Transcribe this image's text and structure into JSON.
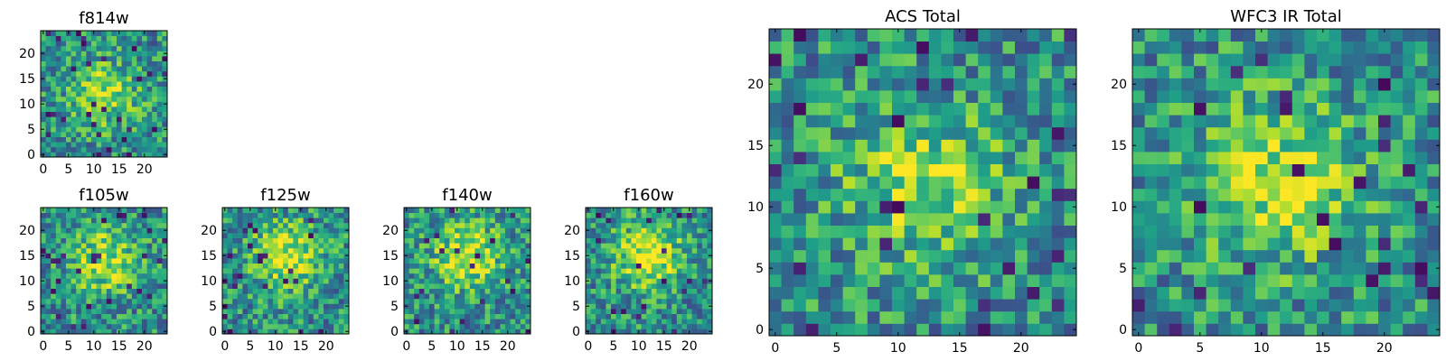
{
  "chart_data": [
    {
      "type": "heatmap",
      "title": "f814w",
      "x_ticks": [
        "0",
        "5",
        "10",
        "15",
        "20"
      ],
      "y_ticks": [
        "0",
        "5",
        "10",
        "15",
        "20"
      ],
      "xlim": [
        -0.5,
        24.5
      ],
      "ylim": [
        -0.5,
        24.5
      ],
      "grid_size": 25,
      "colormap": "viridis",
      "pattern_seed": 11,
      "peak_center": [
        12,
        12
      ],
      "peak_strength": 0.35
    },
    {
      "type": "heatmap",
      "title": "f105w",
      "x_ticks": [
        "0",
        "5",
        "10",
        "15",
        "20"
      ],
      "y_ticks": [
        "0",
        "5",
        "10",
        "15",
        "20"
      ],
      "xlim": [
        -0.5,
        24.5
      ],
      "ylim": [
        -0.5,
        24.5
      ],
      "grid_size": 25,
      "colormap": "viridis",
      "pattern_seed": 23,
      "peak_center": [
        12,
        14
      ],
      "peak_strength": 0.4
    },
    {
      "type": "heatmap",
      "title": "f125w",
      "x_ticks": [
        "0",
        "5",
        "10",
        "15",
        "20"
      ],
      "y_ticks": [
        "0",
        "5",
        "10",
        "15",
        "20"
      ],
      "xlim": [
        -0.5,
        24.5
      ],
      "ylim": [
        -0.5,
        24.5
      ],
      "grid_size": 25,
      "colormap": "viridis",
      "pattern_seed": 37,
      "peak_center": [
        12,
        15
      ],
      "peak_strength": 0.45
    },
    {
      "type": "heatmap",
      "title": "f140w",
      "x_ticks": [
        "0",
        "5",
        "10",
        "15",
        "20"
      ],
      "y_ticks": [
        "0",
        "5",
        "10",
        "15",
        "20"
      ],
      "xlim": [
        -0.5,
        24.5
      ],
      "ylim": [
        -0.5,
        24.5
      ],
      "grid_size": 25,
      "colormap": "viridis",
      "pattern_seed": 41,
      "peak_center": [
        12,
        15
      ],
      "peak_strength": 0.45
    },
    {
      "type": "heatmap",
      "title": "f160w",
      "x_ticks": [
        "0",
        "5",
        "10",
        "15",
        "20"
      ],
      "y_ticks": [
        "0",
        "5",
        "10",
        "15",
        "20"
      ],
      "xlim": [
        -0.5,
        24.5
      ],
      "ylim": [
        -0.5,
        24.5
      ],
      "grid_size": 25,
      "colormap": "viridis",
      "pattern_seed": 53,
      "peak_center": [
        12,
        15
      ],
      "peak_strength": 0.5
    },
    {
      "type": "heatmap",
      "title": "ACS Total",
      "x_ticks": [
        "0",
        "5",
        "10",
        "15",
        "20"
      ],
      "y_ticks": [
        "0",
        "5",
        "10",
        "15",
        "20"
      ],
      "xlim": [
        -0.5,
        24.5
      ],
      "ylim": [
        -0.5,
        24.5
      ],
      "grid_size": 25,
      "colormap": "viridis",
      "pattern_seed": 67,
      "peak_center": [
        12,
        12
      ],
      "peak_strength": 0.35
    },
    {
      "type": "heatmap",
      "title": "WFC3 IR Total",
      "x_ticks": [
        "0",
        "5",
        "10",
        "15",
        "20"
      ],
      "y_ticks": [
        "0",
        "5",
        "10",
        "15",
        "20"
      ],
      "xlim": [
        -0.5,
        24.5
      ],
      "ylim": [
        -0.5,
        24.5
      ],
      "grid_size": 25,
      "colormap": "viridis",
      "pattern_seed": 79,
      "peak_center": [
        11,
        12
      ],
      "peak_strength": 0.4
    }
  ]
}
